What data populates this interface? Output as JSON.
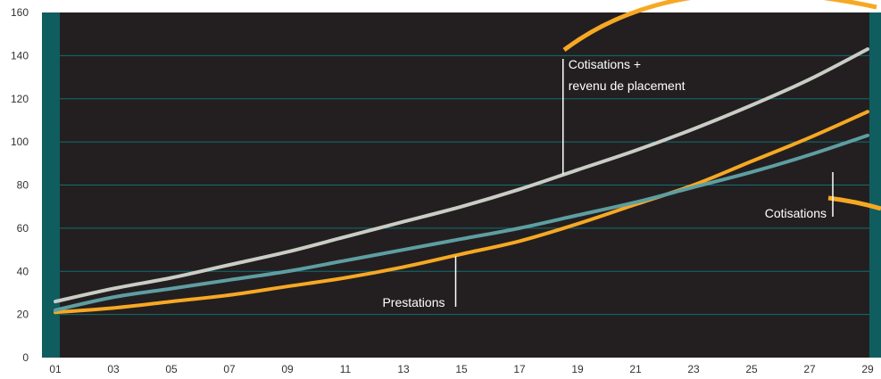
{
  "colors": {
    "background": "#231f20",
    "side_bars": "#0f5d5f",
    "gridlines": "#0f6f70",
    "page": "#ffffff",
    "tick_text": "#333333",
    "annotation_text": "#ffffff",
    "decoration_arc": "#f7a823"
  },
  "chart_data": {
    "type": "line",
    "title": "",
    "xlabel": "",
    "ylabel": "",
    "ylim": [
      0,
      160
    ],
    "yticks": [
      "0",
      "20",
      "40",
      "60",
      "80",
      "100",
      "120",
      "140",
      "160"
    ],
    "xticks": [
      "01",
      "03",
      "05",
      "07",
      "09",
      "11",
      "13",
      "15",
      "17",
      "19",
      "21",
      "23",
      "25",
      "27",
      "29"
    ],
    "grid": true,
    "x": [
      1,
      3,
      5,
      7,
      9,
      11,
      13,
      15,
      17,
      19,
      21,
      23,
      25,
      27,
      29
    ],
    "series": [
      {
        "key": "cotisations_revenu",
        "name": "Cotisations + revenu de placement",
        "color": "#c9cdc5",
        "values": [
          26,
          32,
          37,
          43,
          49,
          56,
          63,
          70,
          78,
          87,
          96,
          106,
          117,
          129,
          143
        ]
      },
      {
        "key": "cotisations",
        "name": "Cotisations",
        "color": "#5e9ea2",
        "values": [
          22,
          28,
          32,
          36,
          40,
          45,
          50,
          55,
          60,
          66,
          72,
          79,
          86,
          94,
          103
        ]
      },
      {
        "key": "prestations",
        "name": "Prestations",
        "color": "#f7a823",
        "values": [
          21,
          23,
          26,
          29,
          33,
          37,
          42,
          48,
          54,
          62,
          71,
          80,
          91,
          102,
          114
        ]
      }
    ],
    "annotations": [
      {
        "series": "cotisations_revenu",
        "lines": [
          "Cotisations +",
          "revenu de placement"
        ],
        "x": 18.5,
        "y": 85
      },
      {
        "series": "cotisations",
        "lines": [
          "Cotisations"
        ],
        "x": 27.8,
        "y": 86
      },
      {
        "series": "prestations",
        "lines": [
          "Prestations"
        ],
        "x": 14.8,
        "y": 47
      }
    ]
  }
}
